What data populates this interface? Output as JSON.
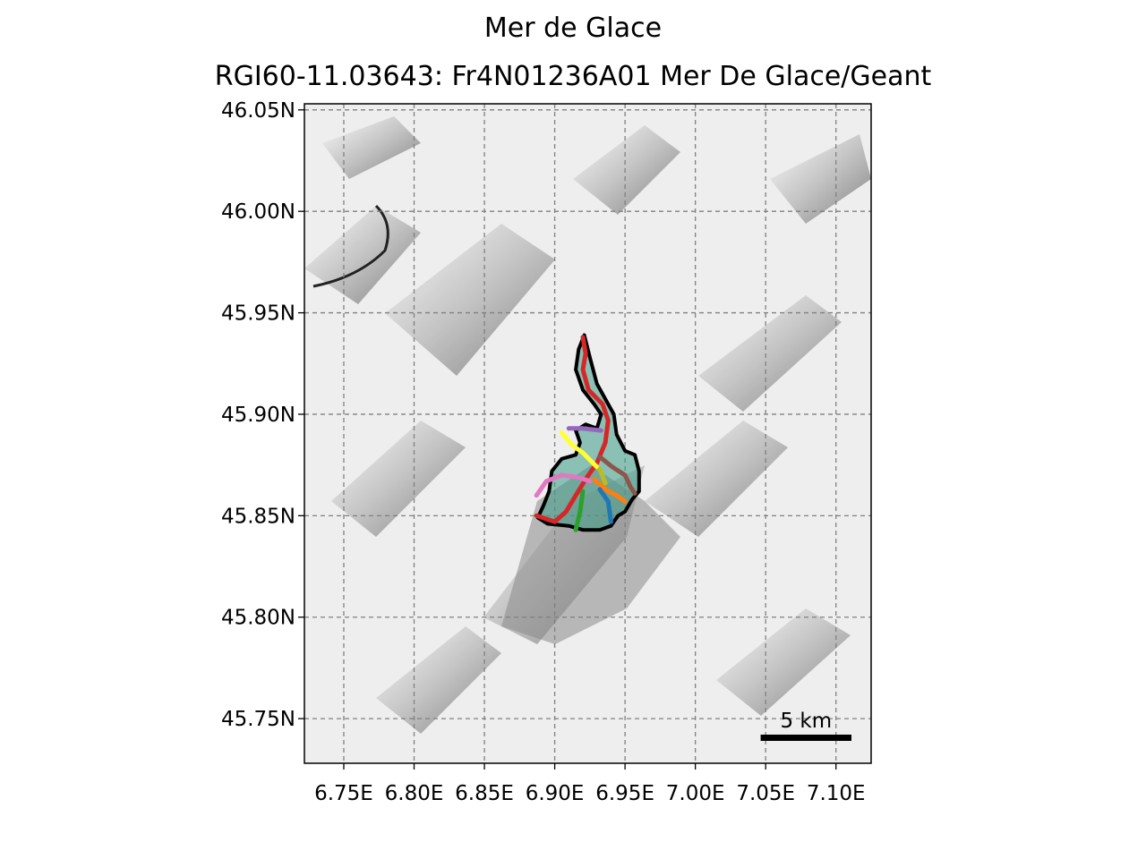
{
  "figure": {
    "title": "Mer de Glace",
    "subtitle": "RGI60-11.03643: Fr4N01236A01 Mer De Glace/Geant"
  },
  "map": {
    "background": "hillshade relief (grayscale)",
    "grid": true,
    "grid_style": "dashed gray",
    "x_axis": {
      "range": [
        6.722,
        7.125
      ],
      "ticks": [
        6.75,
        6.8,
        6.85,
        6.9,
        6.95,
        7.0,
        7.05,
        7.1
      ],
      "tick_labels": [
        "6.75E",
        "6.80E",
        "6.85E",
        "6.90E",
        "6.95E",
        "7.00E",
        "7.05E",
        "7.10E"
      ]
    },
    "y_axis": {
      "range": [
        45.728,
        46.053
      ],
      "ticks": [
        45.75,
        45.8,
        45.85,
        45.9,
        45.95,
        46.0,
        46.05
      ],
      "tick_labels": [
        "45.75N",
        "45.80N",
        "45.85N",
        "45.90N",
        "45.95N",
        "46.00N",
        "46.05N"
      ]
    },
    "scale_bar": {
      "label": "5 km",
      "length_km": 5,
      "position": "bottom-right"
    },
    "glacier_outline": {
      "color": "#000000",
      "points": [
        [
          6.921,
          45.939
        ],
        [
          6.925,
          45.928
        ],
        [
          6.93,
          45.915
        ],
        [
          6.938,
          45.905
        ],
        [
          6.942,
          45.9
        ],
        [
          6.944,
          45.89
        ],
        [
          6.95,
          45.882
        ],
        [
          6.957,
          45.88
        ],
        [
          6.96,
          45.872
        ],
        [
          6.96,
          45.862
        ],
        [
          6.955,
          45.858
        ],
        [
          6.95,
          45.852
        ],
        [
          6.945,
          45.85
        ],
        [
          6.94,
          45.845
        ],
        [
          6.932,
          45.843
        ],
        [
          6.92,
          45.843
        ],
        [
          6.91,
          45.845
        ],
        [
          6.895,
          45.846
        ],
        [
          6.888,
          45.849
        ],
        [
          6.892,
          45.855
        ],
        [
          6.896,
          45.862
        ],
        [
          6.898,
          45.872
        ],
        [
          6.905,
          45.878
        ],
        [
          6.915,
          45.88
        ],
        [
          6.918,
          45.886
        ],
        [
          6.915,
          45.892
        ],
        [
          6.922,
          45.895
        ],
        [
          6.93,
          45.893
        ],
        [
          6.933,
          45.9
        ],
        [
          6.928,
          45.905
        ],
        [
          6.92,
          45.912
        ],
        [
          6.915,
          45.922
        ],
        [
          6.917,
          45.932
        ],
        [
          6.921,
          45.939
        ]
      ]
    },
    "glacier_fill_color": "#3a9a86",
    "flowlines": [
      {
        "color": "#d62728",
        "points": [
          [
            6.92,
            45.938
          ],
          [
            6.922,
            45.93
          ],
          [
            6.92,
            45.922
          ],
          [
            6.924,
            45.912
          ],
          [
            6.934,
            45.905
          ],
          [
            6.938,
            45.897
          ],
          [
            6.936,
            45.886
          ],
          [
            6.93,
            45.876
          ],
          [
            6.922,
            45.868
          ],
          [
            6.915,
            45.86
          ],
          [
            6.908,
            45.852
          ],
          [
            6.9,
            45.847
          ],
          [
            6.887,
            45.85
          ]
        ]
      },
      {
        "color": "#9467bd",
        "points": [
          [
            6.91,
            45.893
          ],
          [
            6.92,
            45.893
          ],
          [
            6.933,
            45.892
          ]
        ]
      },
      {
        "color": "#ffff33",
        "points": [
          [
            6.905,
            45.891
          ],
          [
            6.912,
            45.885
          ],
          [
            6.92,
            45.881
          ],
          [
            6.93,
            45.874
          ]
        ]
      },
      {
        "color": "#8c564b",
        "points": [
          [
            6.932,
            45.879
          ],
          [
            6.941,
            45.874
          ],
          [
            6.95,
            45.87
          ],
          [
            6.954,
            45.864
          ],
          [
            6.957,
            45.861
          ]
        ]
      },
      {
        "color": "#e377c2",
        "points": [
          [
            6.887,
            45.86
          ],
          [
            6.894,
            45.867
          ],
          [
            6.905,
            45.87
          ],
          [
            6.916,
            45.869
          ],
          [
            6.925,
            45.867
          ]
        ]
      },
      {
        "color": "#ff7f0e",
        "points": [
          [
            6.928,
            45.868
          ],
          [
            6.936,
            45.863
          ],
          [
            6.944,
            45.86
          ],
          [
            6.95,
            45.857
          ]
        ]
      },
      {
        "color": "#1f77b4",
        "points": [
          [
            6.932,
            45.863
          ],
          [
            6.938,
            45.857
          ],
          [
            6.94,
            45.847
          ]
        ]
      },
      {
        "color": "#2ca02c",
        "points": [
          [
            6.92,
            45.862
          ],
          [
            6.918,
            45.852
          ],
          [
            6.915,
            45.843
          ]
        ]
      },
      {
        "color": "#bcbd22",
        "points": [
          [
            6.932,
            45.873
          ],
          [
            6.936,
            45.866
          ]
        ]
      }
    ]
  }
}
